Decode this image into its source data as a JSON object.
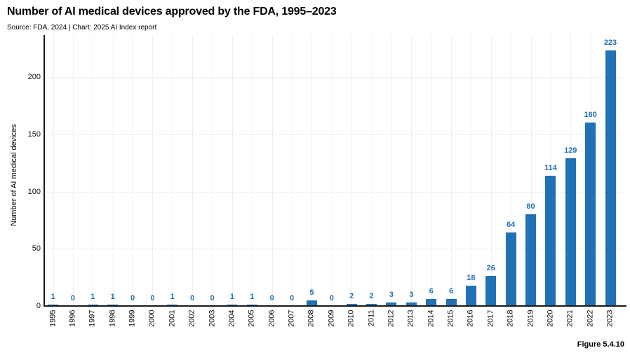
{
  "header": {
    "title": "Number of AI medical devices approved by the FDA, 1995–2023",
    "source": "Source: FDA, 2024 | Chart: 2025 AI Index report"
  },
  "footer": {
    "figure_label": "Figure 5.4.10"
  },
  "chart_data": {
    "type": "bar",
    "title": "Number of AI medical devices approved by the FDA, 1995–2023",
    "categories": [
      "1995",
      "1996",
      "1997",
      "1998",
      "1999",
      "2000",
      "2001",
      "2002",
      "2003",
      "2004",
      "2005",
      "2006",
      "2007",
      "2008",
      "2009",
      "2010",
      "2011",
      "2012",
      "2013",
      "2014",
      "2015",
      "2016",
      "2017",
      "2018",
      "2019",
      "2020",
      "2021",
      "2022",
      "2023"
    ],
    "values": [
      1,
      0,
      1,
      1,
      0,
      0,
      1,
      0,
      0,
      1,
      1,
      0,
      0,
      5,
      0,
      2,
      2,
      3,
      3,
      6,
      6,
      18,
      26,
      64,
      80,
      114,
      129,
      160,
      223
    ],
    "xlabel": "",
    "ylabel": "Number of AI medical devices",
    "yticks": [
      0,
      50,
      100,
      150,
      200
    ],
    "ylim": [
      0,
      231
    ],
    "grid": true,
    "legend": "none",
    "value_labels": true,
    "colors": {
      "bar": "#2171b5",
      "value_label": "#2171b5",
      "axis": "#1a1a1a",
      "gridline": "#f0f0f0",
      "text": "#111111",
      "background": "#ffffff"
    }
  }
}
